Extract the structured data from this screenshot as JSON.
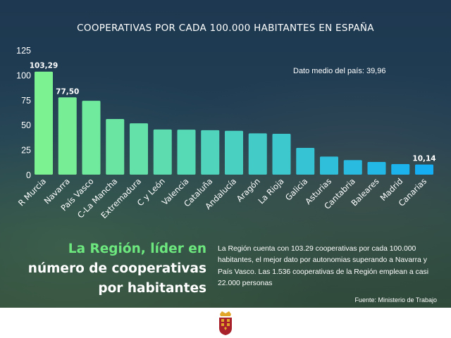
{
  "chart_data": {
    "type": "bar",
    "title": "COOPERATIVAS POR CADA 100.000 HABITANTES EN ESPAÑA",
    "categories": [
      "R Murcia",
      "Navarra",
      "País Vasco",
      "C-La Mancha",
      "Extremadura",
      "C y León",
      "Valencia",
      "Cataluña",
      "Andalucía",
      "Aragón",
      "La Rioja",
      "Galicia",
      "Asturias",
      "Cantabria",
      "Baleares",
      "Madrid",
      "Canarias"
    ],
    "values": [
      103.29,
      77.5,
      74.1,
      55.8,
      51.5,
      45.3,
      45.1,
      44.6,
      44.0,
      41.4,
      41.0,
      26.8,
      18.1,
      14.6,
      12.7,
      10.6,
      10.14
    ],
    "data_labels": {
      "0": "103,29",
      "1": "77,50",
      "16": "10,14"
    },
    "yticks": [
      "0",
      "25",
      "50",
      "75",
      "100",
      "125"
    ],
    "ylim": [
      0,
      125
    ],
    "grid": false,
    "colors": {
      "start": "#7df290",
      "end": "#16aef2"
    },
    "annotation": "Dato medio del país: 39,96"
  },
  "heading": {
    "line1": "La Región, líder en",
    "line2": "número de cooperativas",
    "line3": "por habitantes"
  },
  "body_text": "La Región cuenta con 103.29 cooperativas por cada 100.000 habitantes, el mejor dato por autonomias superando a Navarra y País Vasco. Las 1.536 cooperativas de la Región emplean a casi 22.000 personas",
  "source": "Fuente: Ministerio de Trabajo",
  "logo": "coat-of-arms-region-de-murcia"
}
